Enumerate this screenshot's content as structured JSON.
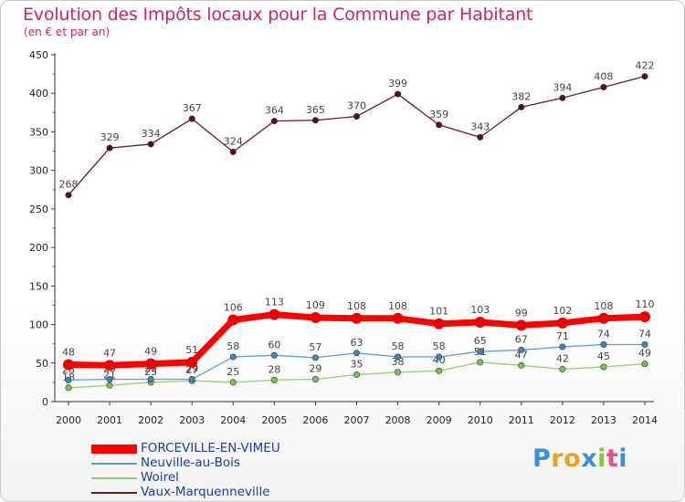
{
  "title": "Evolution des Impôts locaux pour la Commune par Habitant",
  "subtitle": "(en € et par an)",
  "logo": "Proxiti",
  "chart_data": {
    "type": "line",
    "title": "Evolution des Impôts locaux pour la Commune par Habitant",
    "ylabel": "(en € et par an)",
    "xlabel": "",
    "ylim": [
      0,
      450
    ],
    "yticks": [
      0,
      50,
      100,
      150,
      200,
      250,
      300,
      350,
      400,
      450
    ],
    "categories": [
      "2000",
      "2001",
      "2002",
      "2003",
      "2004",
      "2005",
      "2006",
      "2007",
      "2008",
      "2009",
      "2010",
      "2011",
      "2012",
      "2013",
      "2014"
    ],
    "series": [
      {
        "name": "Vaux-Marquenneville",
        "color": "#6b1a1a",
        "marker": "#5a1010",
        "width": 1.3,
        "values": [
          268,
          329,
          334,
          367,
          324,
          364,
          365,
          370,
          399,
          359,
          343,
          382,
          394,
          408,
          422
        ]
      },
      {
        "name": "Woirel",
        "color": "#8fd16a",
        "marker": "#7ac24e",
        "width": 1.3,
        "values": [
          18,
          21,
          25,
          27,
          25,
          28,
          29,
          35,
          38,
          40,
          51,
          47,
          42,
          45,
          49
        ]
      },
      {
        "name": "Neuville-au-Bois",
        "color": "#5b9fd4",
        "marker": "#3f86c2",
        "width": 1.3,
        "values": [
          28,
          29,
          29,
          29,
          58,
          60,
          57,
          63,
          58,
          58,
          65,
          67,
          71,
          74,
          74
        ]
      },
      {
        "name": "FORCEVILLE-EN-VIMEU",
        "color": "#ff0000",
        "marker": "#ee0000",
        "width": 7,
        "values": [
          48,
          47,
          49,
          51,
          106,
          113,
          109,
          108,
          108,
          101,
          103,
          99,
          102,
          108,
          110
        ]
      }
    ],
    "legend": [
      "FORCEVILLE-EN-VIMEU",
      "Neuville-au-Bois",
      "Woirel",
      "Vaux-Marquenneville"
    ],
    "legend_position": "bottom-left",
    "grid": false
  }
}
